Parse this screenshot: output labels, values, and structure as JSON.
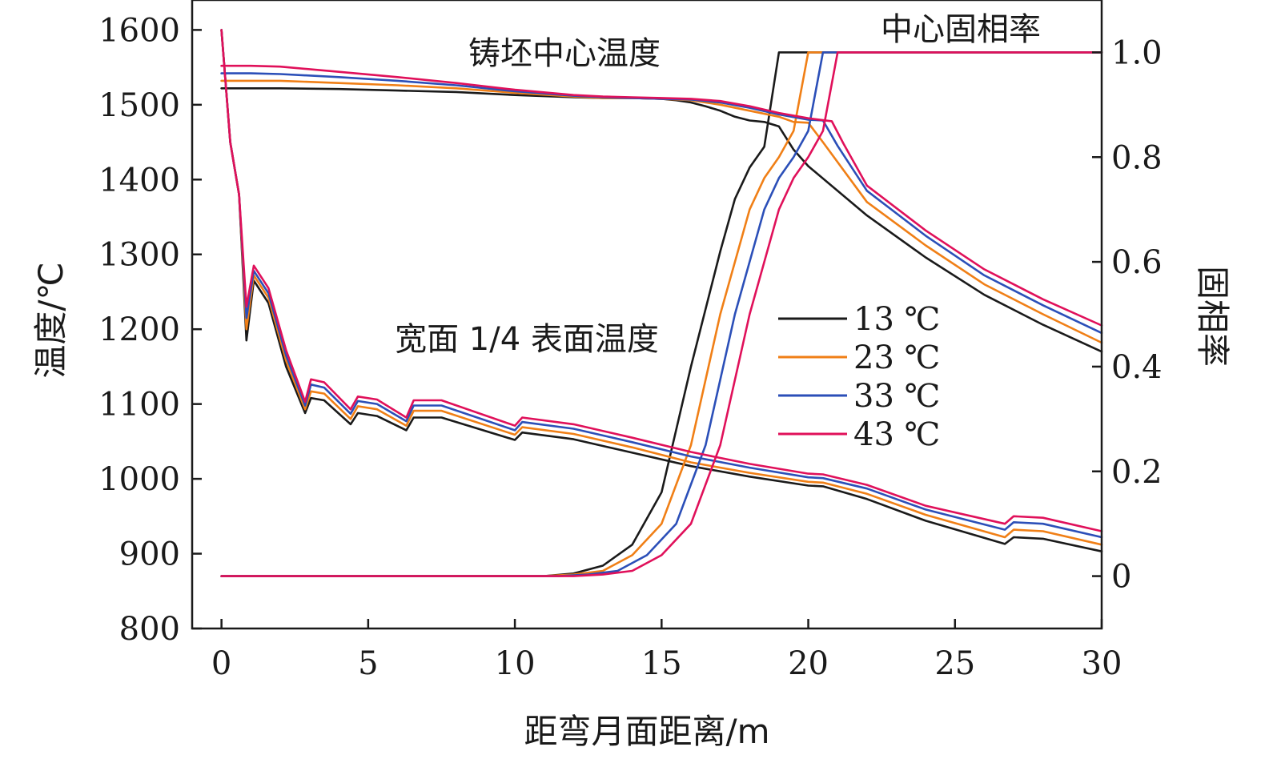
{
  "chart_data": {
    "type": "line",
    "xlabel": "距弯月面距离/m",
    "ylabel": "温度/℃",
    "y2label": "固相率",
    "xlim": [
      -1,
      30
    ],
    "ylim": [
      800,
      1640
    ],
    "y2lim": [
      -0.1,
      1.1
    ],
    "x_ticks": [
      0,
      5,
      10,
      15,
      20,
      25,
      30
    ],
    "y_ticks": [
      800,
      900,
      1000,
      1100,
      1200,
      1300,
      1400,
      1500,
      1600
    ],
    "y2_ticks": [
      0,
      0.2,
      0.4,
      0.6,
      0.8,
      1.0
    ],
    "x_tick_labels": [
      "0",
      "5",
      "10",
      "15",
      "20",
      "25",
      "30"
    ],
    "y_tick_labels": [
      "800",
      "900",
      "1000",
      "1100",
      "1200",
      "1300",
      "1400",
      "1500",
      "1600"
    ],
    "y2_tick_labels": [
      "0",
      "0.2",
      "0.4",
      "0.6",
      "0.8",
      "1.0"
    ],
    "annotations": {
      "center_temp": "铸坯中心温度",
      "surface_temp": "宽面 1/4 表面温度",
      "solid_fraction": "中心固相率"
    },
    "grid": false,
    "legend_position": "center-right",
    "series": [
      {
        "name": "13 ℃",
        "color": "#1a1a1a",
        "center_temperature": {
          "x": [
            0,
            1,
            2,
            4,
            6,
            8,
            10,
            12,
            13,
            14,
            15,
            15.5,
            16,
            16.5,
            17,
            17.5,
            18,
            18.5,
            19,
            19.5,
            20,
            22,
            24,
            26,
            28,
            30
          ],
          "y": [
            1522,
            1522,
            1522,
            1521,
            1519,
            1517,
            1513,
            1510,
            1509,
            1509,
            1508,
            1506,
            1503,
            1498,
            1492,
            1484,
            1479,
            1477,
            1471,
            1440,
            1418,
            1352,
            1296,
            1246,
            1206,
            1170
          ]
        },
        "surface_temperature": {
          "x": [
            0,
            0.3,
            0.6,
            0.85,
            1.1,
            1.6,
            2.2,
            2.85,
            3.05,
            3.5,
            4.4,
            4.65,
            5.3,
            6.3,
            6.55,
            7.5,
            10,
            10.25,
            12,
            14,
            16,
            18,
            20,
            20.5,
            22,
            24,
            26.7,
            27,
            28,
            30
          ],
          "y": [
            1600,
            1450,
            1380,
            1185,
            1265,
            1235,
            1150,
            1088,
            1108,
            1105,
            1073,
            1088,
            1084,
            1065,
            1082,
            1082,
            1052,
            1062,
            1053,
            1035,
            1017,
            1003,
            991,
            990,
            973,
            944,
            913,
            922,
            920,
            903
          ]
        },
        "solid_fraction": {
          "x": [
            0,
            10,
            11,
            12,
            13,
            14,
            15,
            16,
            17,
            17.5,
            18,
            18.5,
            19,
            20,
            30
          ],
          "y": [
            0,
            0,
            0,
            0.005,
            0.02,
            0.06,
            0.16,
            0.4,
            0.62,
            0.72,
            0.78,
            0.82,
            1.0,
            1.0,
            1.0
          ]
        }
      },
      {
        "name": "23 ℃",
        "color": "#f07f16",
        "center_temperature": {
          "x": [
            0,
            1,
            2,
            4,
            6,
            8,
            10,
            12,
            13,
            14,
            15,
            16,
            17,
            18,
            19,
            19.5,
            20,
            20.5,
            22,
            24,
            26,
            28,
            30
          ],
          "y": [
            1532,
            1532,
            1532,
            1529,
            1526,
            1522,
            1516,
            1511,
            1509,
            1509,
            1508,
            1506,
            1500,
            1492,
            1484,
            1477,
            1476,
            1450,
            1370,
            1312,
            1260,
            1220,
            1182
          ]
        },
        "surface_temperature": {
          "x": [
            0,
            0.3,
            0.6,
            0.85,
            1.1,
            1.6,
            2.2,
            2.85,
            3.05,
            3.5,
            4.4,
            4.65,
            5.3,
            6.3,
            6.55,
            7.5,
            10,
            10.25,
            12,
            14,
            16,
            18,
            20,
            20.5,
            22,
            24,
            26.7,
            27,
            28,
            30
          ],
          "y": [
            1600,
            1450,
            1380,
            1200,
            1272,
            1242,
            1158,
            1093,
            1117,
            1114,
            1080,
            1097,
            1093,
            1071,
            1091,
            1091,
            1059,
            1069,
            1060,
            1042,
            1022,
            1008,
            996,
            995,
            980,
            952,
            922,
            932,
            930,
            912
          ]
        },
        "solid_fraction": {
          "x": [
            0,
            11,
            12,
            13,
            14,
            15,
            16,
            17,
            18,
            18.5,
            19,
            19.5,
            20,
            30
          ],
          "y": [
            0,
            0,
            0.003,
            0.01,
            0.04,
            0.1,
            0.25,
            0.5,
            0.7,
            0.76,
            0.8,
            0.85,
            1.0,
            1.0
          ]
        }
      },
      {
        "name": "33 ℃",
        "color": "#2b4fb8",
        "center_temperature": {
          "x": [
            0,
            1,
            2,
            4,
            6,
            8,
            10,
            12,
            13,
            14,
            15,
            16,
            17,
            18,
            19,
            20,
            20.5,
            21,
            22,
            24,
            26,
            28,
            30
          ],
          "y": [
            1542,
            1542,
            1541,
            1537,
            1532,
            1526,
            1518,
            1512,
            1510,
            1509,
            1508,
            1507,
            1503,
            1496,
            1487,
            1480,
            1479,
            1445,
            1385,
            1325,
            1272,
            1232,
            1195
          ]
        },
        "surface_temperature": {
          "x": [
            0,
            0.3,
            0.6,
            0.85,
            1.1,
            1.6,
            2.2,
            2.85,
            3.05,
            3.5,
            4.4,
            4.65,
            5.3,
            6.3,
            6.55,
            7.5,
            10,
            10.25,
            12,
            14,
            16,
            18,
            20,
            20.5,
            22,
            24,
            26.7,
            27,
            28,
            30
          ],
          "y": [
            1600,
            1450,
            1380,
            1215,
            1278,
            1248,
            1165,
            1098,
            1126,
            1122,
            1087,
            1104,
            1100,
            1077,
            1098,
            1098,
            1065,
            1076,
            1067,
            1049,
            1030,
            1015,
            1002,
            1001,
            987,
            959,
            932,
            942,
            940,
            922
          ]
        },
        "solid_fraction": {
          "x": [
            0,
            11.5,
            12.5,
            13.5,
            14.5,
            15.5,
            16.5,
            17.5,
            18.5,
            19,
            19.5,
            20,
            20.5,
            30
          ],
          "y": [
            0,
            0,
            0.003,
            0.01,
            0.04,
            0.1,
            0.25,
            0.5,
            0.7,
            0.76,
            0.8,
            0.85,
            1.0,
            1.0
          ]
        }
      },
      {
        "name": "43 ℃",
        "color": "#e0105a",
        "center_temperature": {
          "x": [
            0,
            1,
            2,
            4,
            6,
            8,
            10,
            12,
            13,
            14,
            15,
            16,
            17,
            18,
            19,
            20,
            20.8,
            21.2,
            22,
            24,
            26,
            28,
            30
          ],
          "y": [
            1552,
            1552,
            1551,
            1544,
            1537,
            1529,
            1520,
            1513,
            1511,
            1510,
            1509,
            1508,
            1505,
            1498,
            1489,
            1482,
            1478,
            1448,
            1392,
            1332,
            1280,
            1240,
            1205
          ]
        },
        "surface_temperature": {
          "x": [
            0,
            0.3,
            0.6,
            0.85,
            1.1,
            1.6,
            2.2,
            2.85,
            3.05,
            3.5,
            4.4,
            4.65,
            5.3,
            6.3,
            6.55,
            7.5,
            10,
            10.25,
            12,
            14,
            16,
            18,
            20,
            20.5,
            22,
            24,
            26.7,
            27,
            28,
            30
          ],
          "y": [
            1600,
            1450,
            1380,
            1230,
            1285,
            1255,
            1172,
            1103,
            1133,
            1129,
            1093,
            1110,
            1106,
            1082,
            1105,
            1105,
            1071,
            1082,
            1073,
            1055,
            1036,
            1020,
            1007,
            1006,
            992,
            964,
            940,
            950,
            948,
            930
          ]
        },
        "solid_fraction": {
          "x": [
            0,
            12,
            13,
            14,
            15,
            16,
            17,
            18,
            19,
            19.5,
            20,
            20.5,
            21,
            30
          ],
          "y": [
            0,
            0,
            0.003,
            0.01,
            0.04,
            0.1,
            0.25,
            0.5,
            0.7,
            0.76,
            0.8,
            0.85,
            1.0,
            1.0
          ]
        }
      }
    ]
  }
}
